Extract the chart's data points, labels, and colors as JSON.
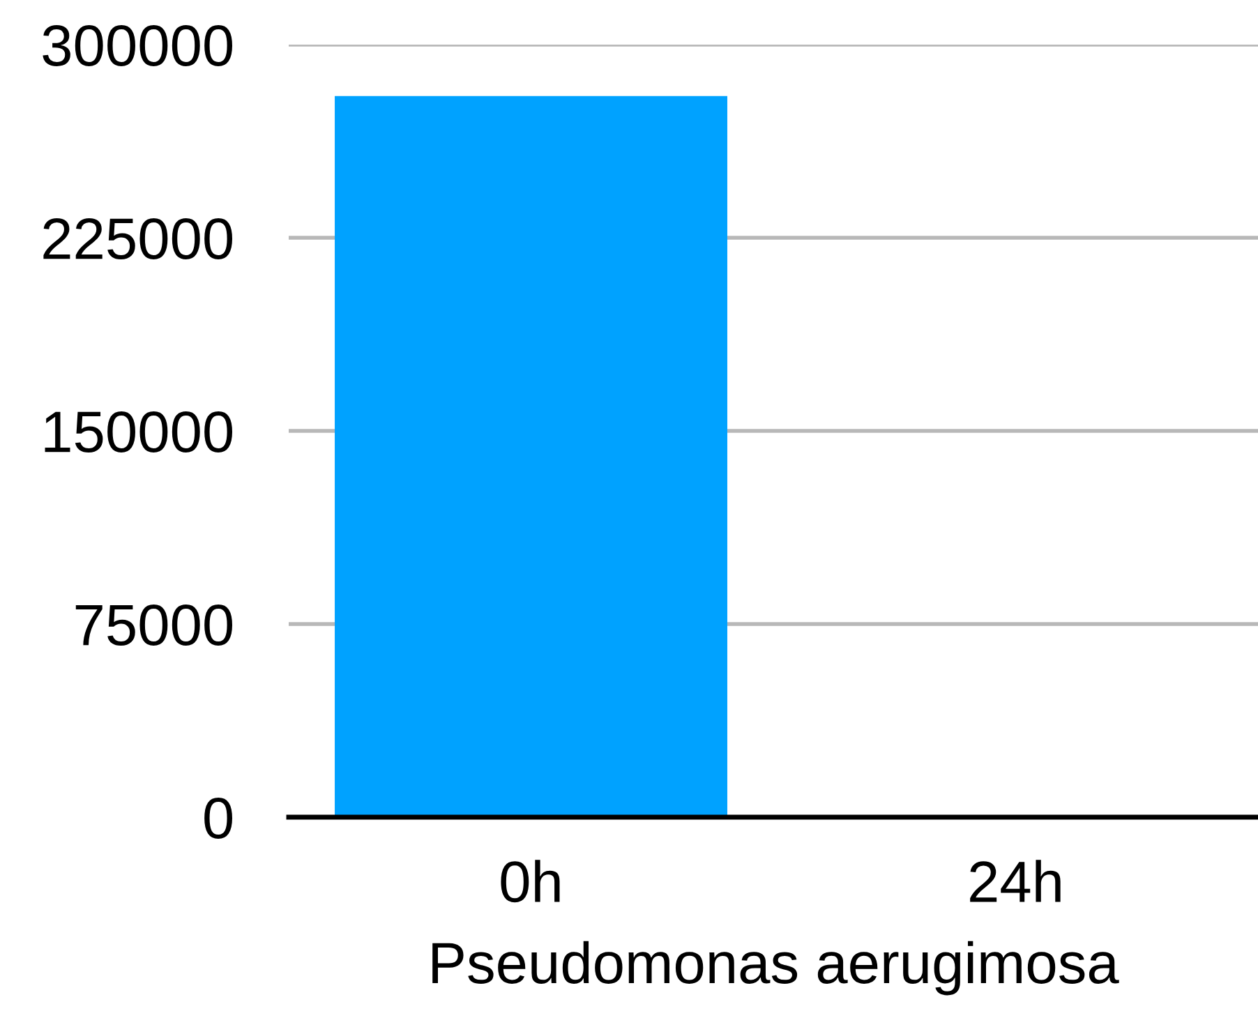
{
  "chart_data": {
    "type": "bar",
    "xlabel": "Pseudomonas aerugimosa",
    "categories": [
      "0h",
      "24h"
    ],
    "values": [
      280000,
      0
    ],
    "color": "#00a2ff",
    "ylim": [
      0,
      300000
    ],
    "yticks": [
      0,
      75000,
      150000,
      225000,
      300000
    ],
    "grid": "y"
  }
}
